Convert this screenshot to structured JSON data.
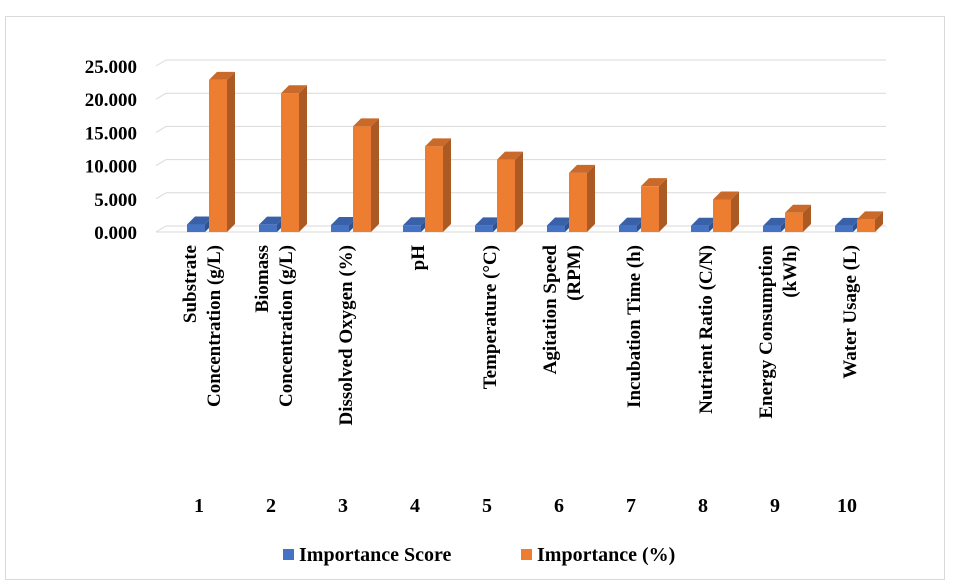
{
  "chart_data": {
    "type": "bar",
    "style": "3d-clustered-column",
    "categories": [
      "Substrate Concentration (g/L)",
      "Biomass Concentration (g/L)",
      "Dissolved Oxygen (%)",
      "pH",
      "Temperature (°C)",
      "Agitation Speed (RPM)",
      "Incubation Time (h)",
      "Nutrient Ratio (C/N)",
      "Energy Consumption (kWh)",
      "Water Usage (L)"
    ],
    "category_lines": [
      [
        "Substrate",
        "Concentration (g/L)"
      ],
      [
        "Biomass",
        "Concentration (g/L)"
      ],
      [
        "Dissolved Oxygen (%)"
      ],
      [
        "pH"
      ],
      [
        "Temperature (°C)"
      ],
      [
        "Agitation Speed",
        "(RPM)"
      ],
      [
        "Incubation Time (h)"
      ],
      [
        "Nutrient Ratio (C/N)"
      ],
      [
        "Energy Consumption",
        "(kWh)"
      ],
      [
        "Water Usage (L)"
      ]
    ],
    "category_numbers": [
      "1",
      "2",
      "3",
      "4",
      "5",
      "6",
      "7",
      "8",
      "9",
      "10"
    ],
    "series": [
      {
        "name": "Importance Score",
        "values": [
          0.22,
          0.2,
          0.15,
          0.12,
          0.1,
          0.08,
          0.06,
          0.04,
          0.02,
          0.01
        ],
        "color": "#4472c4"
      },
      {
        "name": "Importance (%)",
        "values": [
          22,
          20,
          15,
          12,
          10,
          8,
          6,
          4,
          2,
          1
        ],
        "color": "#ed7d31"
      }
    ],
    "yticks": [
      "0.000",
      "5.000",
      "10.000",
      "15.000",
      "20.000",
      "25.000"
    ],
    "ylim": [
      0,
      25
    ],
    "grid": true,
    "legend_position": "bottom"
  }
}
